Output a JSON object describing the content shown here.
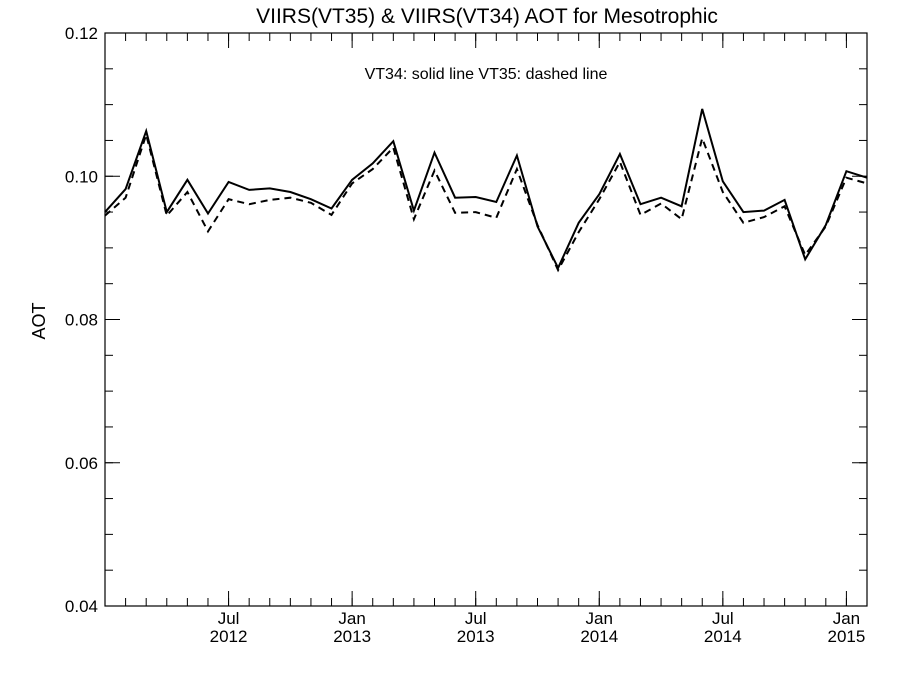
{
  "chart_data": {
    "type": "line",
    "title": "VIIRS(VT35) & VIIRS(VT34)  AOT for Mesotrophic",
    "annotation": "VT34: solid line   VT35: dashed line",
    "xlabel": "",
    "ylabel": "AOT",
    "x": [
      "2012-01",
      "2012-02",
      "2012-03",
      "2012-04",
      "2012-05",
      "2012-06",
      "2012-07",
      "2012-08",
      "2012-09",
      "2012-10",
      "2012-11",
      "2012-12",
      "2013-01",
      "2013-02",
      "2013-03",
      "2013-04",
      "2013-05",
      "2013-06",
      "2013-07",
      "2013-08",
      "2013-09",
      "2013-10",
      "2013-11",
      "2013-12",
      "2014-01",
      "2014-02",
      "2014-03",
      "2014-04",
      "2014-05",
      "2014-06",
      "2014-07",
      "2014-08",
      "2014-09",
      "2014-10",
      "2014-11",
      "2014-12",
      "2015-01",
      "2015-02"
    ],
    "xlim": [
      "2012-01",
      "2015-02"
    ],
    "ylim": [
      0.04,
      0.12
    ],
    "yticks": [
      {
        "value": 0.04,
        "label": "0.04"
      },
      {
        "value": 0.06,
        "label": "0.06"
      },
      {
        "value": 0.08,
        "label": "0.08"
      },
      {
        "value": 0.1,
        "label": "0.10"
      },
      {
        "value": 0.12,
        "label": "0.12"
      }
    ],
    "xticks": [
      {
        "at": "2012-07",
        "label1": "Jul",
        "label2": "2012"
      },
      {
        "at": "2013-01",
        "label1": "Jan",
        "label2": "2013"
      },
      {
        "at": "2013-07",
        "label1": "Jul",
        "label2": "2013"
      },
      {
        "at": "2014-01",
        "label1": "Jan",
        "label2": "2014"
      },
      {
        "at": "2014-07",
        "label1": "Jul",
        "label2": "2014"
      },
      {
        "at": "2015-01",
        "label1": "Jan",
        "label2": "2015"
      }
    ],
    "series": [
      {
        "values": [
          0.095,
          0.0982,
          0.1063,
          0.095,
          0.0995,
          0.0948,
          0.0992,
          0.0981,
          0.0983,
          0.0978,
          0.0968,
          0.0955,
          0.0995,
          0.1018,
          0.1049,
          0.0952,
          0.1033,
          0.097,
          0.0971,
          0.0964,
          0.1029,
          0.093,
          0.0872,
          0.0935,
          0.0975,
          0.1031,
          0.0961,
          0.097,
          0.0958,
          0.1094,
          0.0993,
          0.095,
          0.0952,
          0.0967,
          0.0884,
          0.0932,
          0.1007,
          0.0998
        ],
        "line_style": "solid",
        "color": "#000000"
      },
      {
        "values": [
          0.0945,
          0.097,
          0.1058,
          0.0945,
          0.0978,
          0.0923,
          0.0968,
          0.0961,
          0.0967,
          0.097,
          0.0963,
          0.0946,
          0.099,
          0.101,
          0.104,
          0.094,
          0.1008,
          0.0949,
          0.095,
          0.0942,
          0.101,
          0.0932,
          0.0869,
          0.0922,
          0.0968,
          0.102,
          0.0946,
          0.0962,
          0.094,
          0.1053,
          0.0978,
          0.0935,
          0.0943,
          0.0958,
          0.089,
          0.093,
          0.0998,
          0.099
        ],
        "line_style": "dashed",
        "color": "#000000"
      }
    ],
    "grid": false
  }
}
